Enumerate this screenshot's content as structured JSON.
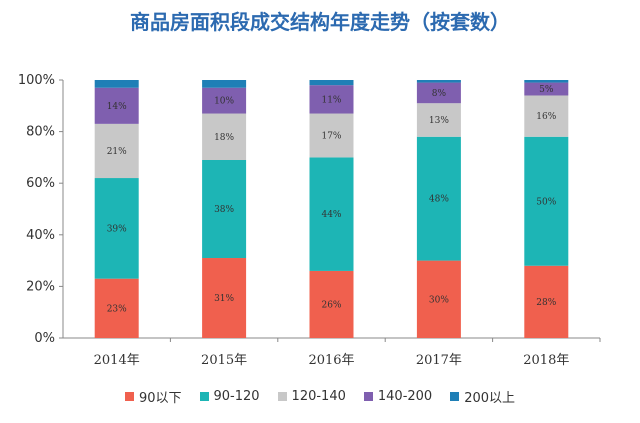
{
  "chart_data": {
    "type": "bar",
    "stacked": true,
    "title": "商品房面积段成交结构年度走势（按套数）",
    "categories": [
      "2014年",
      "2015年",
      "2016年",
      "2017年",
      "2018年"
    ],
    "series": [
      {
        "name": "90以下",
        "color": "#f0604e",
        "values": [
          23,
          31,
          26,
          30,
          28
        ],
        "labels": [
          "23%",
          "31%",
          "26%",
          "30%",
          "28%"
        ]
      },
      {
        "name": "90-120",
        "color": "#1db5b5",
        "values": [
          39,
          38,
          44,
          48,
          50
        ],
        "labels": [
          "39%",
          "38%",
          "44%",
          "48%",
          "50%"
        ]
      },
      {
        "name": "120-140",
        "color": "#c8c8c8",
        "values": [
          21,
          18,
          17,
          13,
          16
        ],
        "labels": [
          "21%",
          "18%",
          "17%",
          "13%",
          "16%"
        ]
      },
      {
        "name": "140-200",
        "color": "#7f5faf",
        "values": [
          14,
          10,
          11,
          8,
          5
        ],
        "labels": [
          "14%",
          "10%",
          "11%",
          "8%",
          "5%"
        ]
      },
      {
        "name": "200以上",
        "color": "#1f7fb6",
        "values": [
          3,
          3,
          2,
          1,
          1
        ],
        "labels": [
          "",
          "",
          "",
          "",
          ""
        ]
      }
    ],
    "y_ticks": [
      "0%",
      "20%",
      "40%",
      "60%",
      "80%",
      "100%"
    ],
    "ylim": [
      0,
      100
    ],
    "xlabel": "",
    "ylabel": "",
    "grid": false,
    "legend_position": "bottom"
  }
}
